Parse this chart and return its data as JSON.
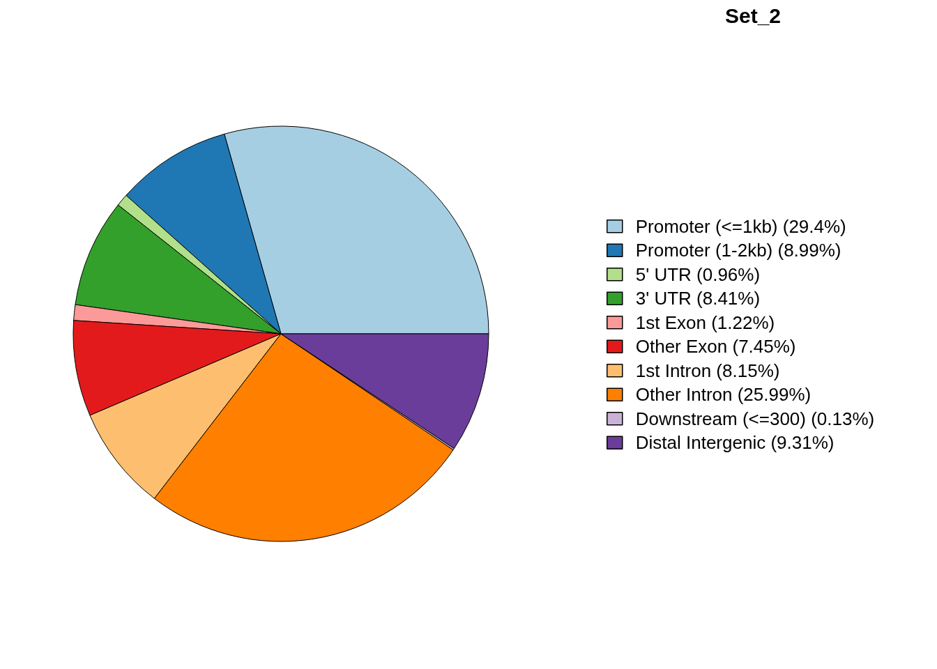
{
  "chart_data": {
    "type": "pie",
    "title": "Set_2",
    "categories": [
      "Promoter (<=1kb) (29.4%)",
      "Promoter (1-2kb) (8.99%)",
      "5' UTR (0.96%)",
      "3' UTR (8.41%)",
      "1st Exon (1.22%)",
      "Other Exon (7.45%)",
      "1st Intron (8.15%)",
      "Other Intron (25.99%)",
      "Downstream (<=300) (0.13%)",
      "Distal Intergenic (9.31%)"
    ],
    "values": [
      29.4,
      8.99,
      0.96,
      8.41,
      1.22,
      7.45,
      8.15,
      25.99,
      0.13,
      9.31
    ],
    "colors": [
      "#a6cee3",
      "#1f78b4",
      "#b2df8a",
      "#33a02c",
      "#fb9a99",
      "#e31a1c",
      "#fdbf6f",
      "#ff7f00",
      "#cab2d6",
      "#6a3d9a"
    ],
    "legend": "right"
  }
}
